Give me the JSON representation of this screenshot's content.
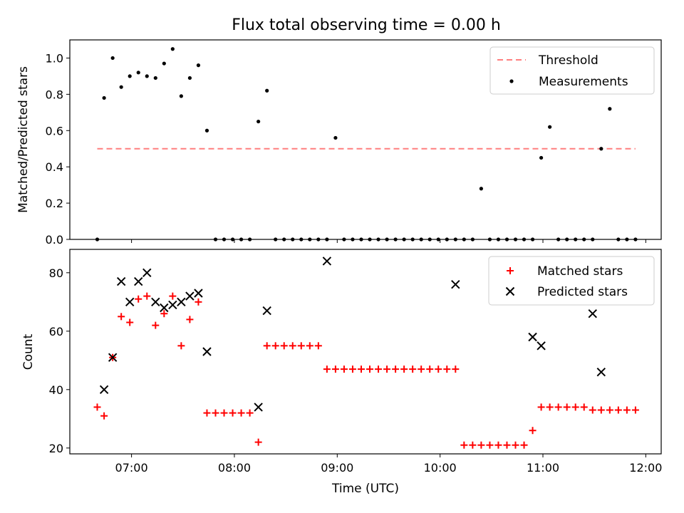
{
  "figure": {
    "title": "Flux total observing time = 0.00 h"
  },
  "chart_data": [
    {
      "type": "scatter",
      "panel": "top",
      "xlabel": "",
      "ylabel": "Matched/Predicted stars",
      "xlim": [
        "06:24",
        "12:09"
      ],
      "ylim": [
        0,
        1.1
      ],
      "y_ticks": [
        "0.0",
        "0.2",
        "0.4",
        "0.6",
        "0.8",
        "1.0"
      ],
      "legend_position": "top-right",
      "series": [
        {
          "name": "Threshold",
          "kind": "dashed-line",
          "color": "#ff7f7f",
          "x": [
            "06:40",
            "11:54"
          ],
          "y": [
            0.5,
            0.5
          ]
        },
        {
          "name": "Measurements",
          "kind": "points",
          "color": "#000000",
          "x": [
            "06:40",
            "06:44",
            "06:49",
            "06:54",
            "06:59",
            "07:04",
            "07:09",
            "07:14",
            "07:19",
            "07:24",
            "07:29",
            "07:34",
            "07:39",
            "07:44",
            "07:49",
            "07:54",
            "07:59",
            "08:04",
            "08:09",
            "08:14",
            "08:19",
            "08:24",
            "08:29",
            "08:34",
            "08:39",
            "08:44",
            "08:49",
            "08:54",
            "08:59",
            "09:04",
            "09:09",
            "09:14",
            "09:19",
            "09:24",
            "09:29",
            "09:34",
            "09:39",
            "09:44",
            "09:49",
            "09:54",
            "09:59",
            "10:04",
            "10:09",
            "10:14",
            "10:19",
            "10:24",
            "10:29",
            "10:34",
            "10:39",
            "10:44",
            "10:49",
            "10:54",
            "10:59",
            "11:04",
            "11:09",
            "11:14",
            "11:19",
            "11:24",
            "11:29",
            "11:34",
            "11:39",
            "11:44",
            "11:49",
            "11:54"
          ],
          "y": [
            0,
            0.78,
            1.0,
            0.84,
            0.9,
            0.92,
            0.9,
            0.89,
            0.97,
            1.05,
            0.79,
            0.89,
            0.96,
            0.6,
            0,
            0,
            0,
            0,
            0,
            0.65,
            0.82,
            0,
            0,
            0,
            0,
            0,
            0,
            0,
            0.56,
            0,
            0,
            0,
            0,
            0,
            0,
            0,
            0,
            0,
            0,
            0,
            0,
            0,
            0,
            0,
            0,
            0.28,
            0,
            0,
            0,
            0,
            0,
            0,
            0.45,
            0.62,
            0,
            0,
            0,
            0,
            0,
            0.5,
            0.72,
            0,
            0,
            0
          ]
        }
      ]
    },
    {
      "type": "scatter",
      "panel": "bottom",
      "xlabel": "Time (UTC)",
      "ylabel": "Count",
      "xlim": [
        "06:24",
        "12:09"
      ],
      "ylim": [
        18,
        88
      ],
      "y_ticks": [
        "20",
        "40",
        "60",
        "80"
      ],
      "x_ticks": [
        "07:00",
        "08:00",
        "09:00",
        "10:00",
        "11:00",
        "12:00"
      ],
      "legend_position": "top-right",
      "series": [
        {
          "name": "Matched stars",
          "marker": "plus",
          "color": "#ff0000",
          "x": [
            "06:40",
            "06:44",
            "06:49",
            "06:54",
            "06:59",
            "07:04",
            "07:09",
            "07:14",
            "07:19",
            "07:24",
            "07:29",
            "07:34",
            "07:39",
            "07:44",
            "07:49",
            "07:54",
            "07:59",
            "08:04",
            "08:09",
            "08:14",
            "08:19",
            "08:24",
            "08:29",
            "08:34",
            "08:39",
            "08:44",
            "08:49",
            "08:54",
            "08:59",
            "09:04",
            "09:09",
            "09:14",
            "09:19",
            "09:24",
            "09:29",
            "09:34",
            "09:39",
            "09:44",
            "09:49",
            "09:54",
            "09:59",
            "10:04",
            "10:09",
            "10:14",
            "10:19",
            "10:24",
            "10:29",
            "10:34",
            "10:39",
            "10:44",
            "10:49",
            "10:54",
            "10:59",
            "11:04",
            "11:09",
            "11:14",
            "11:19",
            "11:24",
            "11:29",
            "11:34",
            "11:39",
            "11:44",
            "11:49",
            "11:54"
          ],
          "y": [
            34,
            31,
            51,
            65,
            63,
            71,
            72,
            62,
            66,
            72,
            55,
            64,
            70,
            32,
            32,
            32,
            32,
            32,
            32,
            22,
            55,
            55,
            55,
            55,
            55,
            55,
            55,
            47,
            47,
            47,
            47,
            47,
            47,
            47,
            47,
            47,
            47,
            47,
            47,
            47,
            47,
            47,
            47,
            21,
            21,
            21,
            21,
            21,
            21,
            21,
            21,
            26,
            34,
            34,
            34,
            34,
            34,
            34,
            33,
            33,
            33,
            33,
            33,
            33
          ]
        },
        {
          "name": "Predicted stars",
          "marker": "x",
          "color": "#000000",
          "x": [
            "06:44",
            "06:49",
            "06:54",
            "06:59",
            "07:04",
            "07:09",
            "07:14",
            "07:19",
            "07:24",
            "07:29",
            "07:34",
            "07:39",
            "07:44",
            "08:14",
            "08:19",
            "08:54",
            "10:09",
            "10:54",
            "10:59",
            "11:29",
            "11:34"
          ],
          "y": [
            40,
            51,
            77,
            70,
            77,
            80,
            70,
            68,
            69,
            70,
            72,
            73,
            53,
            34,
            67,
            84,
            76,
            58,
            55,
            66,
            46
          ]
        }
      ]
    }
  ]
}
